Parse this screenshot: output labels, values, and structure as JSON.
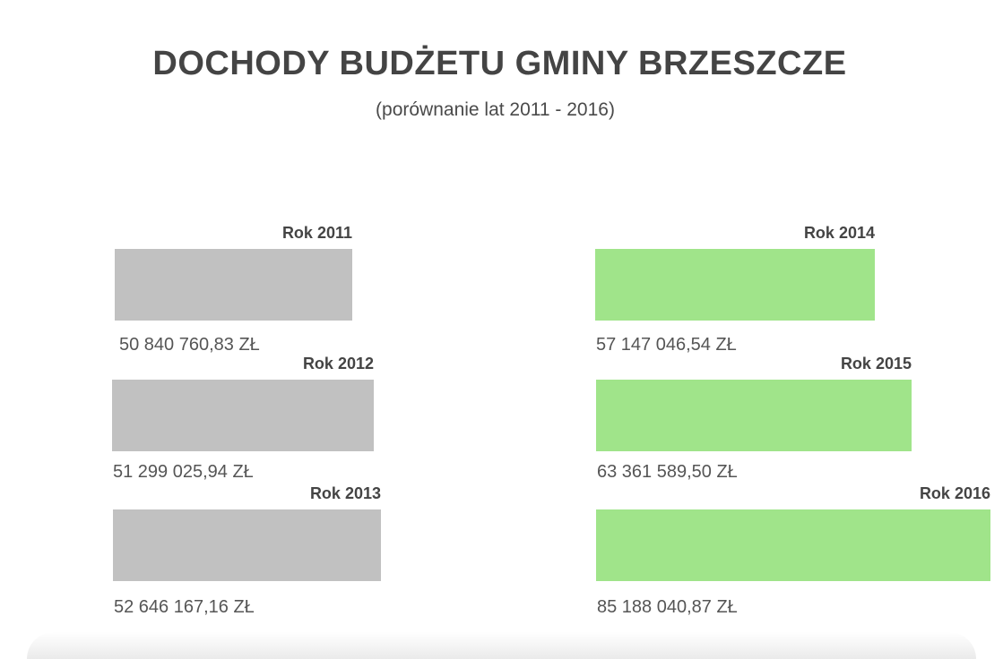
{
  "title": "DOCHODY BUDŻETU GMINY BRZESZCZE",
  "subtitle": "(porównanie lat 2011 - 2016)",
  "colors": {
    "past": "#c1c1c1",
    "recent": "#a0e48a",
    "text": "#444444"
  },
  "chart_data": {
    "type": "bar",
    "title": "DOCHODY BUDŻETU GMINY BRZESZCZE",
    "subtitle": "(porównanie lat 2011 - 2016)",
    "categories": [
      "Rok 2011",
      "Rok 2012",
      "Rok 2013",
      "Rok 2014",
      "Rok 2015",
      "Rok 2016"
    ],
    "values": [
      50840760.83,
      51299025.94,
      52646167.16,
      57147046.54,
      63361589.5,
      85188040.87
    ],
    "value_labels": [
      "50 840 760,83 ZŁ",
      "51 299 025,94 ZŁ",
      "52 646 167,16 ZŁ",
      "57 147 046,54 ZŁ",
      "63 361 589,50 ZŁ",
      "85 188 040,87 ZŁ"
    ],
    "orientation": "horizontal",
    "grid": false,
    "legend": "none"
  }
}
